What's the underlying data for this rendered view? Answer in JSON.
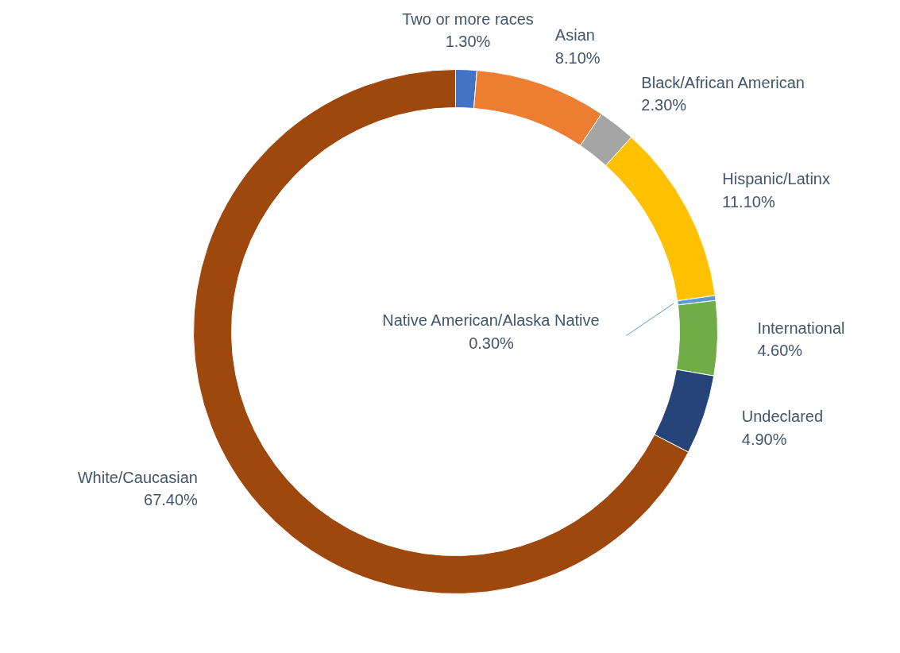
{
  "chart_data": {
    "type": "donut",
    "categories": [
      "Two or more races",
      "Asian",
      "Black/African American",
      "Hispanic/Latinx",
      "Native American/Alaska Native",
      "International",
      "Undeclared",
      "White/Caucasian"
    ],
    "values": [
      1.3,
      8.1,
      2.3,
      11.1,
      0.3,
      4.6,
      4.9,
      67.4
    ],
    "colors": [
      "#4472c4",
      "#ed7d31",
      "#a5a5a5",
      "#ffc000",
      "#5b9bd5",
      "#70ad47",
      "#264478",
      "#9e480e"
    ],
    "value_labels": [
      "1.30%",
      "8.10%",
      "2.30%",
      "11.10%",
      "0.30%",
      "4.60%",
      "4.90%",
      "67.40%"
    ]
  }
}
